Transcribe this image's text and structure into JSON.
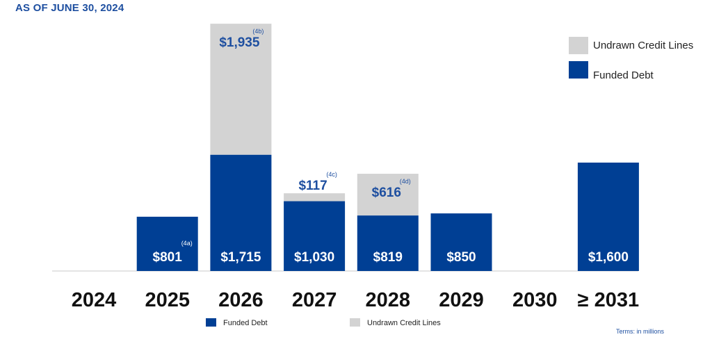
{
  "header": {
    "as_of": "AS OF JUNE 30, 2024"
  },
  "footnote": "Terms: in millions",
  "colors": {
    "funded": "#003f94",
    "undrawn": "#d3d3d3",
    "text_blue": "#1e4fa0",
    "axis": "#c8c8c8"
  },
  "chart_data": {
    "type": "bar",
    "stacked": true,
    "categories": [
      "2024",
      "2025",
      "2026",
      "2027",
      "2028",
      "2029",
      "2030",
      "≥ 2031"
    ],
    "series": [
      {
        "name": "Funded Debt",
        "values": [
          0,
          801,
          1715,
          1030,
          819,
          850,
          0,
          1600
        ]
      },
      {
        "name": "Undrawn Credit Lines",
        "values": [
          0,
          0,
          1935,
          117,
          616,
          0,
          0,
          0
        ]
      }
    ],
    "funded_labels": [
      "",
      "$801",
      "$1,715",
      "$1,030",
      "$819",
      "$850",
      "",
      "$1,600"
    ],
    "funded_notes": [
      "",
      "(4a)",
      "",
      "",
      "",
      "",
      "",
      ""
    ],
    "undrawn_labels": [
      "",
      "",
      "$1,935",
      "$117",
      "$616",
      "",
      "",
      ""
    ],
    "undrawn_notes": [
      "",
      "",
      "(4b)",
      "(4c)",
      "(4d)",
      "",
      "",
      ""
    ],
    "legend": [
      "Undrawn Credit Lines",
      "Funded Debt"
    ],
    "bottom_legend": [
      "Funded Debt",
      "Undrawn Credit Lines"
    ],
    "legend_position": "top-right",
    "grid": false
  }
}
